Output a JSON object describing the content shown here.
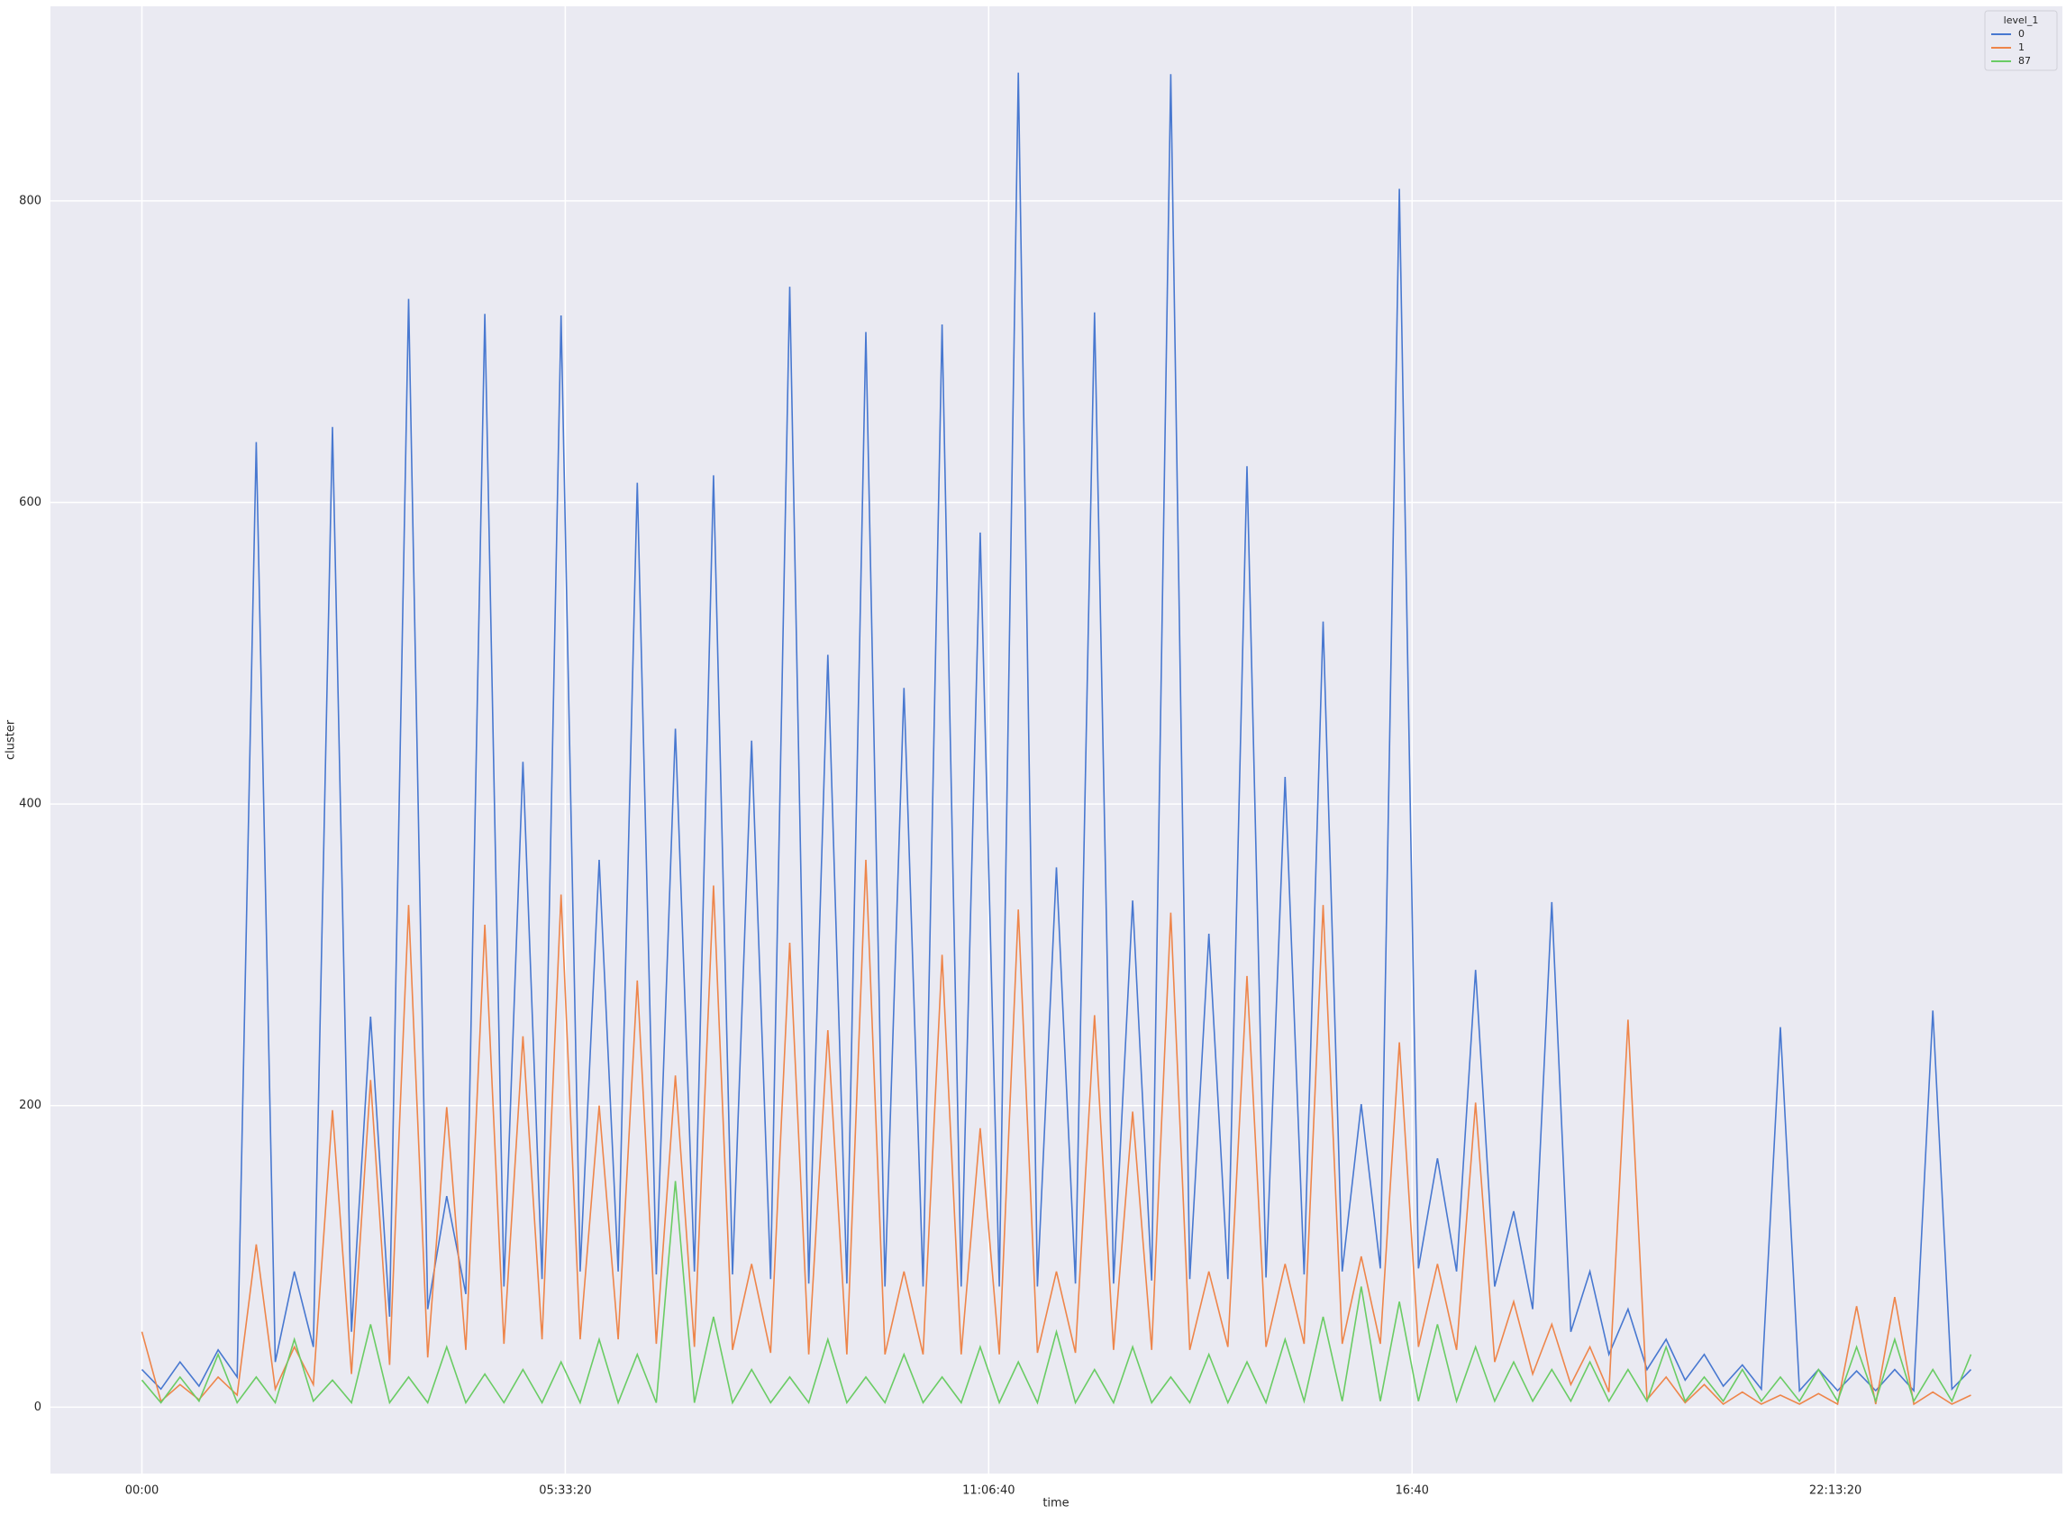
{
  "chart_data": {
    "type": "line",
    "xlabel": "time",
    "ylabel": "cluster",
    "legend_title": "level_1",
    "legend_loc": "upper right",
    "grid": true,
    "x": [
      0,
      900,
      1800,
      2700,
      3600,
      4500,
      5400,
      6300,
      7200,
      8100,
      9000,
      9900,
      10800,
      11700,
      12600,
      13500,
      14400,
      15300,
      16200,
      17100,
      18000,
      18900,
      19800,
      20700,
      21600,
      22500,
      23400,
      24300,
      25200,
      26100,
      27000,
      27900,
      28800,
      29700,
      30600,
      31500,
      32400,
      33300,
      34200,
      35100,
      36000,
      36900,
      37800,
      38700,
      39600,
      40500,
      41400,
      42300,
      43200,
      44100,
      45000,
      45900,
      46800,
      47700,
      48600,
      49500,
      50400,
      51300,
      52200,
      53100,
      54000,
      54900,
      55800,
      56700,
      57600,
      58500,
      59400,
      60300,
      61200,
      62100,
      63000,
      63900,
      64800,
      65700,
      66600,
      67500,
      68400,
      69300,
      70200,
      71100,
      72000,
      72900,
      73800,
      74700,
      75600,
      76500,
      77400,
      78300,
      79200,
      80100,
      81000,
      81900,
      82800,
      83700,
      84600,
      85500,
      86400
    ],
    "series": [
      {
        "name": "0",
        "color": "#4878d0",
        "values": [
          25,
          12,
          30,
          14,
          38,
          20,
          640,
          30,
          90,
          40,
          650,
          50,
          259,
          60,
          735,
          65,
          140,
          75,
          725,
          80,
          428,
          85,
          724,
          90,
          363,
          90,
          613,
          88,
          450,
          90,
          618,
          88,
          442,
          85,
          743,
          82,
          499,
          82,
          713,
          80,
          477,
          80,
          718,
          80,
          580,
          80,
          885,
          80,
          358,
          82,
          726,
          82,
          336,
          84,
          884,
          85,
          314,
          85,
          624,
          86,
          418,
          88,
          521,
          90,
          201,
          92,
          808,
          92,
          165,
          90,
          290,
          80,
          130,
          65,
          335,
          50,
          90,
          35,
          65,
          25,
          45,
          18,
          35,
          14,
          28,
          12,
          252,
          11,
          25,
          11,
          24,
          11,
          25,
          11,
          263,
          12,
          25
        ]
      },
      {
        "name": "1",
        "color": "#ee854a",
        "values": [
          50,
          4,
          15,
          5,
          20,
          8,
          108,
          12,
          40,
          15,
          197,
          22,
          217,
          28,
          333,
          33,
          199,
          38,
          320,
          42,
          246,
          45,
          340,
          45,
          200,
          45,
          283,
          42,
          220,
          40,
          346,
          38,
          95,
          36,
          308,
          35,
          250,
          35,
          363,
          35,
          90,
          35,
          300,
          35,
          185,
          35,
          330,
          36,
          90,
          36,
          260,
          38,
          196,
          38,
          328,
          38,
          90,
          40,
          286,
          40,
          95,
          42,
          333,
          42,
          100,
          42,
          242,
          40,
          95,
          38,
          202,
          30,
          70,
          22,
          55,
          15,
          40,
          10,
          257,
          5,
          20,
          3,
          15,
          2,
          10,
          2,
          8,
          2,
          9,
          2,
          67,
          2,
          73,
          2,
          10,
          2,
          8
        ]
      },
      {
        "name": "87",
        "color": "#6acc64",
        "values": [
          18,
          3,
          20,
          4,
          35,
          3,
          20,
          3,
          45,
          4,
          18,
          3,
          55,
          3,
          20,
          3,
          40,
          3,
          22,
          3,
          25,
          3,
          30,
          3,
          45,
          3,
          35,
          3,
          150,
          3,
          60,
          3,
          25,
          3,
          20,
          3,
          45,
          3,
          20,
          3,
          35,
          3,
          20,
          3,
          40,
          3,
          30,
          3,
          50,
          3,
          25,
          3,
          40,
          3,
          20,
          3,
          35,
          3,
          30,
          3,
          45,
          4,
          60,
          4,
          80,
          4,
          70,
          4,
          55,
          4,
          40,
          4,
          30,
          4,
          25,
          4,
          30,
          4,
          25,
          4,
          40,
          4,
          20,
          4,
          25,
          4,
          20,
          4,
          25,
          4,
          40,
          4,
          45,
          4,
          25,
          4,
          35
        ]
      }
    ],
    "xlim": [
      -4320,
      90720
    ],
    "xticks": [
      {
        "value": 0,
        "label": "00:00"
      },
      {
        "value": 20000,
        "label": "05:33:20"
      },
      {
        "value": 40000,
        "label": "11:06:40"
      },
      {
        "value": 60000,
        "label": "16:40"
      },
      {
        "value": 80000,
        "label": "22:13:20"
      }
    ],
    "ylim": [
      -44,
      929
    ],
    "yticks": [
      0,
      200,
      400,
      600,
      800
    ]
  }
}
